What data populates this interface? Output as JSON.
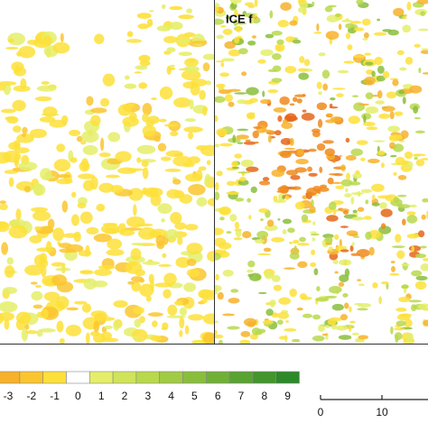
{
  "panel_label": "ICE f",
  "legend": {
    "items": [
      {
        "label": "-3",
        "color": "#f7b12a"
      },
      {
        "label": "-2",
        "color": "#fac52f"
      },
      {
        "label": "-1",
        "color": "#fde03a"
      },
      {
        "label": "0",
        "color": "#ffffff"
      },
      {
        "label": "1",
        "color": "#e4ee6a"
      },
      {
        "label": "2",
        "color": "#cfe45a"
      },
      {
        "label": "3",
        "color": "#b9d84c"
      },
      {
        "label": "4",
        "color": "#a1cb43"
      },
      {
        "label": "5",
        "color": "#89be3c"
      },
      {
        "label": "6",
        "color": "#70b036"
      },
      {
        "label": "7",
        "color": "#58a331"
      },
      {
        "label": "8",
        "color": "#42962c"
      },
      {
        "label": "9",
        "color": "#2d8927"
      }
    ]
  },
  "scale_bar": {
    "labels": [
      "0",
      "10"
    ]
  }
}
